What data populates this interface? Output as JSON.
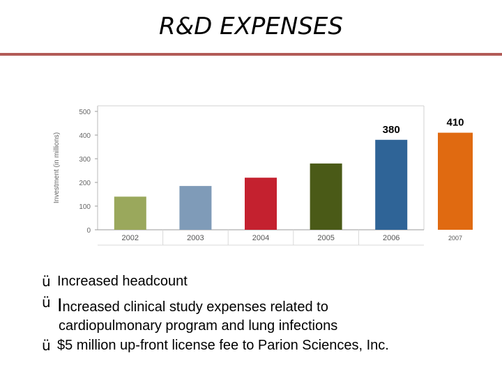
{
  "slide": {
    "title": "R&D EXPENSES"
  },
  "chart_data": {
    "type": "bar",
    "ylabel": "Investment (in millions)",
    "categories": [
      "2002",
      "2003",
      "2004",
      "2005",
      "2006",
      "2007"
    ],
    "values": [
      140,
      185,
      220,
      280,
      380,
      410
    ],
    "ylim": [
      0,
      500
    ],
    "yticks": [
      "0",
      "100",
      "200",
      "300",
      "400",
      "500"
    ],
    "colors": [
      "#9aa85c",
      "#7f9bb8",
      "#c4212f",
      "#4a5a17",
      "#2f6497",
      "#e06a11"
    ],
    "annotations": [
      {
        "category": "2006",
        "label": "380"
      },
      {
        "category": "2007",
        "label": "410"
      }
    ],
    "grid": false
  },
  "bullets": [
    {
      "check": "ü",
      "text": "Increased headcount"
    },
    {
      "check": "ü",
      "first": "I",
      "text": "ncreased clinical study expenses related to",
      "cont": "cardiopulmonary program and lung infections"
    },
    {
      "check": "ü",
      "text": "$5 million up-front license fee to Parion Sciences, Inc."
    }
  ]
}
